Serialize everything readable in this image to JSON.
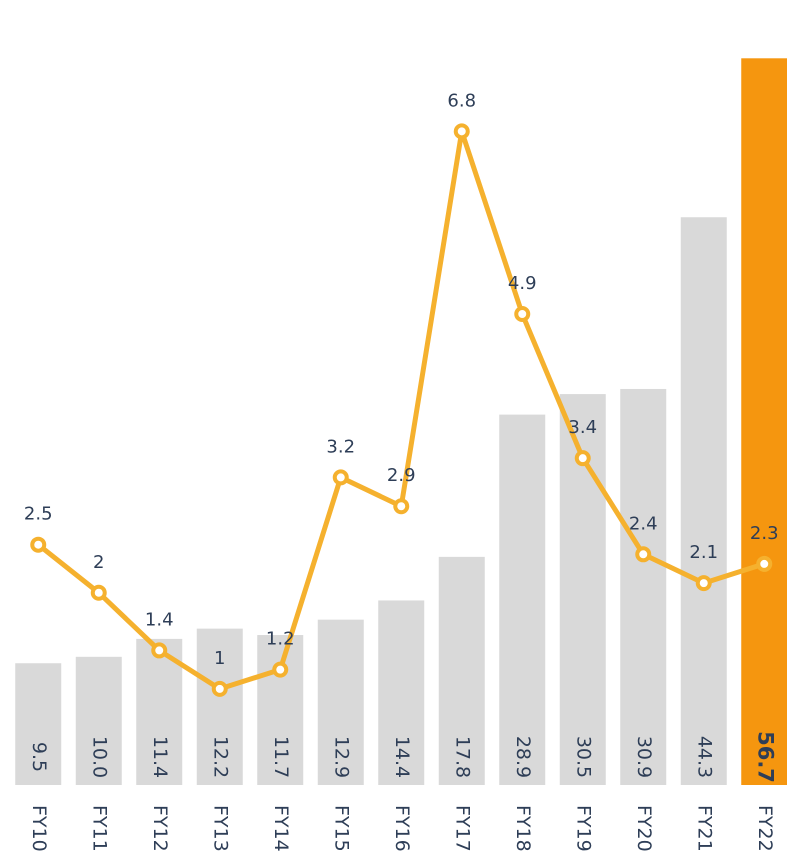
{
  "chart_data": {
    "type": "bar",
    "categories": [
      "FY10",
      "FY11",
      "FY12",
      "FY13",
      "FY14",
      "FY15",
      "FY16",
      "FY17",
      "FY18",
      "FY19",
      "FY20",
      "FY21",
      "FY22"
    ],
    "series": [
      {
        "type": "bar",
        "color": "#d9d9d9",
        "colors": [
          "#d9d9d9",
          "#d9d9d9",
          "#d9d9d9",
          "#d9d9d9",
          "#d9d9d9",
          "#d9d9d9",
          "#d9d9d9",
          "#d9d9d9",
          "#d9d9d9",
          "#d9d9d9",
          "#d9d9d9",
          "#d9d9d9",
          "#f5960f"
        ],
        "values": [
          9.5,
          10.0,
          11.4,
          12.2,
          11.7,
          12.9,
          14.4,
          17.8,
          28.9,
          30.5,
          30.9,
          44.3,
          56.7
        ],
        "value_labels": [
          "9.5",
          "10.0",
          "11.4",
          "12.2",
          "11.7",
          "12.9",
          "14.4",
          "17.8",
          "28.9",
          "30.5",
          "30.9",
          "44.3",
          "56.7"
        ]
      },
      {
        "type": "line",
        "axis": "y2",
        "color": "#f5b12e",
        "values": [
          2.5,
          2.0,
          1.4,
          1.0,
          1.2,
          3.2,
          2.9,
          6.8,
          4.9,
          3.4,
          2.4,
          2.1,
          2.3
        ]
      }
    ],
    "ylim": [
      0,
      60
    ],
    "y2lim": [
      0,
      8
    ]
  }
}
